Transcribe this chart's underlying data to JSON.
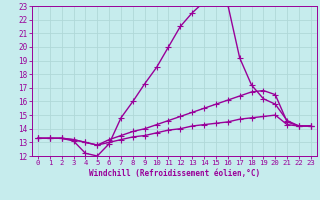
{
  "xlabel": "Windchill (Refroidissement éolien,°C)",
  "ylabel": "",
  "xlim": [
    -0.5,
    23.5
  ],
  "ylim": [
    12,
    23
  ],
  "xticks": [
    0,
    1,
    2,
    3,
    4,
    5,
    6,
    7,
    8,
    9,
    10,
    11,
    12,
    13,
    14,
    15,
    16,
    17,
    18,
    19,
    20,
    21,
    22,
    23
  ],
  "yticks": [
    12,
    13,
    14,
    15,
    16,
    17,
    18,
    19,
    20,
    21,
    22,
    23
  ],
  "bg_color": "#c6eced",
  "line_color": "#990099",
  "grid_color": "#b0d8d8",
  "line1_x": [
    0,
    1,
    2,
    3,
    4,
    5,
    6,
    7,
    8,
    9,
    10,
    11,
    12,
    13,
    14,
    15,
    16,
    17,
    18,
    19,
    20,
    21,
    22,
    23
  ],
  "line1_y": [
    13.3,
    13.3,
    13.3,
    13.1,
    12.2,
    12.0,
    12.9,
    14.8,
    16.0,
    17.3,
    18.5,
    20.0,
    21.5,
    22.5,
    23.3,
    23.3,
    23.1,
    19.2,
    17.2,
    16.2,
    15.8,
    14.6,
    14.2,
    14.2
  ],
  "line2_x": [
    0,
    1,
    2,
    3,
    4,
    5,
    6,
    7,
    8,
    9,
    10,
    11,
    12,
    13,
    14,
    15,
    16,
    17,
    18,
    19,
    20,
    21,
    22,
    23
  ],
  "line2_y": [
    13.3,
    13.3,
    13.3,
    13.2,
    13.0,
    12.8,
    13.2,
    13.5,
    13.8,
    14.0,
    14.3,
    14.6,
    14.9,
    15.2,
    15.5,
    15.8,
    16.1,
    16.4,
    16.7,
    16.8,
    16.5,
    14.5,
    14.2,
    14.2
  ],
  "line3_x": [
    0,
    1,
    2,
    3,
    4,
    5,
    6,
    7,
    8,
    9,
    10,
    11,
    12,
    13,
    14,
    15,
    16,
    17,
    18,
    19,
    20,
    21,
    22,
    23
  ],
  "line3_y": [
    13.3,
    13.3,
    13.3,
    13.2,
    13.0,
    12.8,
    13.0,
    13.2,
    13.4,
    13.5,
    13.7,
    13.9,
    14.0,
    14.2,
    14.3,
    14.4,
    14.5,
    14.7,
    14.8,
    14.9,
    15.0,
    14.3,
    14.2,
    14.2
  ],
  "marker": "+",
  "marker_size": 4,
  "line_width": 1.0
}
